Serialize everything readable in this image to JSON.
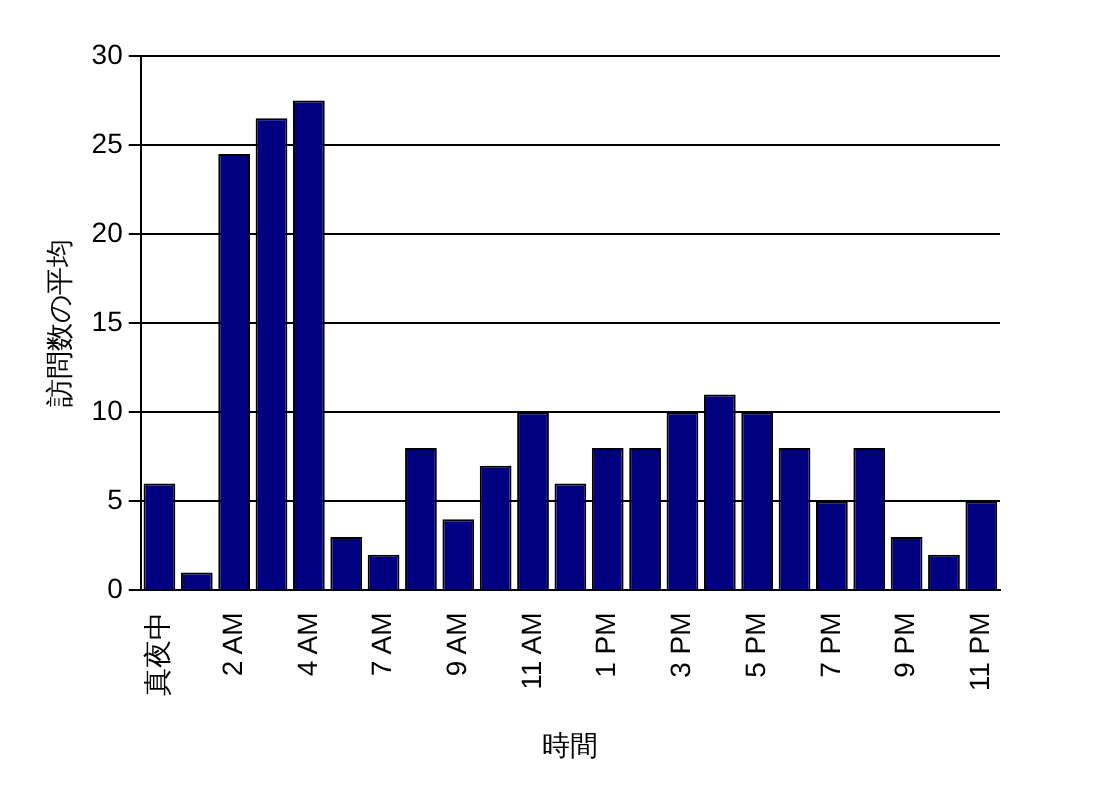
{
  "chart_data": {
    "type": "bar",
    "xlabel": "時間",
    "ylabel": "訪問数の平均",
    "categories": [
      "真夜中",
      null,
      "2 AM",
      null,
      "4 AM",
      null,
      "7 AM",
      null,
      "9 AM",
      null,
      "11 AM",
      null,
      "1 PM",
      null,
      "3 PM",
      null,
      "5 PM",
      null,
      "7 PM",
      null,
      "9 PM",
      null,
      "11 PM"
    ],
    "values": [
      6,
      1,
      24.5,
      26.5,
      27.5,
      3,
      2,
      8,
      4,
      7,
      10,
      6,
      8,
      8,
      10,
      11,
      10,
      8,
      5,
      8,
      3,
      2,
      5
    ],
    "color": "#000080",
    "ylim": [
      0,
      30
    ],
    "yticks": [
      0,
      5,
      10,
      15,
      20,
      25,
      30
    ],
    "grid": "y",
    "legend": false
  }
}
